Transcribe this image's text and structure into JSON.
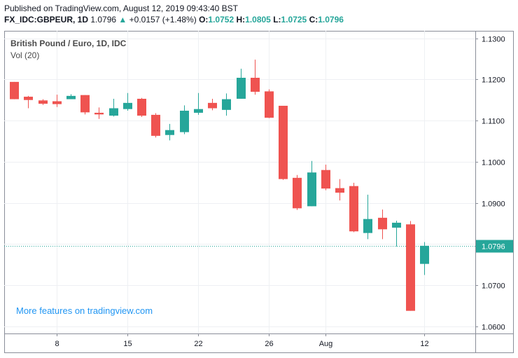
{
  "header": {
    "published": "Published on TradingView.com, August 12, 2019 09:43:40 BST",
    "symbol": "FX_IDC:GBPEUR, 1D",
    "last": "1.0796",
    "change_arrow": "▲",
    "change": "+0.0157 (+1.48%)",
    "open_label": "O:",
    "open": "1.0752",
    "high_label": "H:",
    "high": "1.0805",
    "low_label": "L:",
    "low": "1.0725",
    "close_label": "C:",
    "close": "1.0796"
  },
  "chart_data": {
    "type": "candlestick",
    "title": "British Pound / Euro, 1D, IDC",
    "indicator": "Vol (20)",
    "watermark": "More features on tradingview.com",
    "last_price_label": "1.0796",
    "last_price": 1.0796,
    "ylim": [
      1.0583,
      1.1318
    ],
    "y_ticks": [
      1.06,
      1.07,
      1.08,
      1.09,
      1.1,
      1.11,
      1.12,
      1.13
    ],
    "y_tick_labels": [
      "1.0600",
      "1.0700",
      "1.0800",
      "1.0900",
      "1.1000",
      "1.1100",
      "1.1200",
      "1.1300"
    ],
    "x_tick_labels": [
      "8",
      "15",
      "22",
      "26",
      "Aug",
      "12"
    ],
    "x_tick_index": [
      3,
      8,
      13,
      18,
      22,
      29
    ],
    "x_range": [
      -0.7,
      32.6
    ],
    "colors": {
      "up": "#26a69a",
      "down": "#ef5350",
      "last_line": "#26a69a",
      "watermark": "#2196f3"
    },
    "candles": [
      {
        "open": 1.1194,
        "high": 1.1194,
        "low": 1.1152,
        "close": 1.1152
      },
      {
        "open": 1.1158,
        "high": 1.116,
        "low": 1.113,
        "close": 1.115
      },
      {
        "open": 1.1149,
        "high": 1.1152,
        "low": 1.1138,
        "close": 1.1141
      },
      {
        "open": 1.1147,
        "high": 1.1163,
        "low": 1.1133,
        "close": 1.114
      },
      {
        "open": 1.1152,
        "high": 1.1164,
        "low": 1.1153,
        "close": 1.116
      },
      {
        "open": 1.1162,
        "high": 1.1162,
        "low": 1.1115,
        "close": 1.112
      },
      {
        "open": 1.1119,
        "high": 1.1132,
        "low": 1.1104,
        "close": 1.1115
      },
      {
        "open": 1.1112,
        "high": 1.1153,
        "low": 1.111,
        "close": 1.113
      },
      {
        "open": 1.1128,
        "high": 1.1167,
        "low": 1.1124,
        "close": 1.1143
      },
      {
        "open": 1.1153,
        "high": 1.1155,
        "low": 1.1109,
        "close": 1.1112
      },
      {
        "open": 1.1114,
        "high": 1.1118,
        "low": 1.1059,
        "close": 1.1063
      },
      {
        "open": 1.1065,
        "high": 1.1092,
        "low": 1.1052,
        "close": 1.1077
      },
      {
        "open": 1.1072,
        "high": 1.1137,
        "low": 1.1067,
        "close": 1.1124
      },
      {
        "open": 1.1119,
        "high": 1.1167,
        "low": 1.1114,
        "close": 1.1128
      },
      {
        "open": 1.1143,
        "high": 1.1153,
        "low": 1.1125,
        "close": 1.113
      },
      {
        "open": 1.1126,
        "high": 1.1166,
        "low": 1.1112,
        "close": 1.1152
      },
      {
        "open": 1.1153,
        "high": 1.1226,
        "low": 1.1153,
        "close": 1.1204
      },
      {
        "open": 1.1204,
        "high": 1.1248,
        "low": 1.1163,
        "close": 1.117
      },
      {
        "open": 1.1171,
        "high": 1.1176,
        "low": 1.1106,
        "close": 1.1107
      },
      {
        "open": 1.1136,
        "high": 1.1136,
        "low": 1.0956,
        "close": 1.0958
      },
      {
        "open": 1.0961,
        "high": 1.0968,
        "low": 1.0883,
        "close": 1.0887
      },
      {
        "open": 1.0892,
        "high": 1.1002,
        "low": 1.0892,
        "close": 1.0974
      },
      {
        "open": 1.098,
        "high": 1.0993,
        "low": 1.0931,
        "close": 1.0935
      },
      {
        "open": 1.0936,
        "high": 1.0958,
        "low": 1.0906,
        "close": 1.0925
      },
      {
        "open": 1.0941,
        "high": 1.0949,
        "low": 1.0829,
        "close": 1.0831
      },
      {
        "open": 1.0827,
        "high": 1.092,
        "low": 1.0812,
        "close": 1.0861
      },
      {
        "open": 1.0864,
        "high": 1.0884,
        "low": 1.0812,
        "close": 1.0836
      },
      {
        "open": 1.084,
        "high": 1.0857,
        "low": 1.0794,
        "close": 1.0852
      },
      {
        "open": 1.0848,
        "high": 1.0856,
        "low": 1.0638,
        "close": 1.0638
      },
      {
        "open": 1.0752,
        "high": 1.0805,
        "low": 1.0725,
        "close": 1.0796
      }
    ]
  }
}
